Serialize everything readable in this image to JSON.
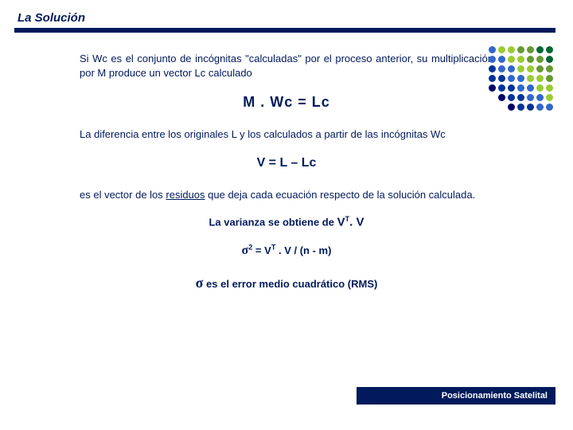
{
  "colors": {
    "navy": "#001a5c",
    "bg": "#ffffff",
    "dot_colors": [
      "#006633",
      "#669933",
      "#99cc33",
      "#3366cc",
      "#003399",
      "#000066"
    ]
  },
  "title": "La Solución",
  "p1": "Si Wc es el conjunto de incógnitas \"calculadas\" por el proceso anterior, su multiplicación por M produce un vector Lc calculado",
  "eq1": "M . Wc  =  Lc",
  "p2": "La diferencia entre los originales L y los calculados a partir de las incógnitas Wc",
  "eq2": "V = L – Lc",
  "p3a": "es el vector de los ",
  "p3u": "residuos",
  "p3b": " que deja cada ecuación respecto de la solución calculada.",
  "line_var_a": "La varianza se obtiene de ",
  "line_var_bv": "V",
  "line_var_bt": "T",
  "line_var_bexp": ". V",
  "eq3_sigma": "σ",
  "eq3_sup": "2",
  "eq3_rest": " = V",
  "eq3_T": "T",
  "eq3_tail": " . V / (n - m)",
  "line_rms_sym": "σ",
  "line_rms_txt": "  es el error medio cuadrático (RMS)",
  "footer": "Posicionamiento Satelital",
  "dots": {
    "rows": 7,
    "cols": 7,
    "spacing": 12
  }
}
